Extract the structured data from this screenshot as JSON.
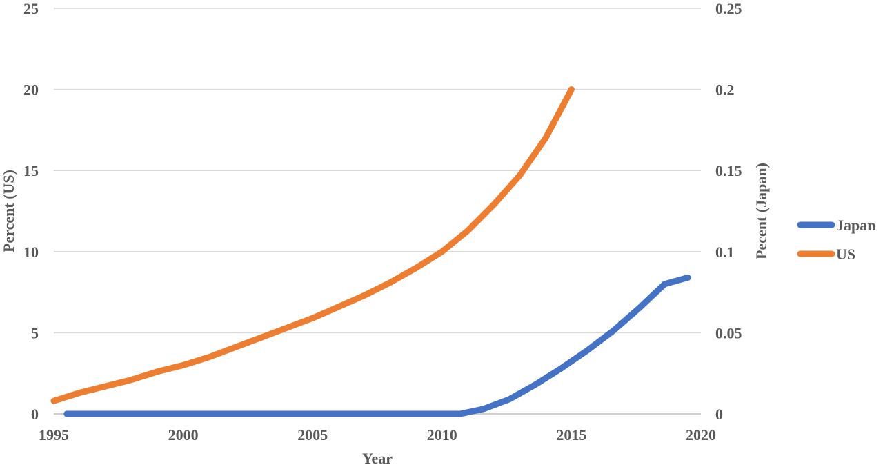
{
  "chart_data": {
    "type": "line",
    "xlabel": "Year",
    "ylabel_left": "Percent (US)",
    "ylabel_right": "Pecent (Japan)",
    "xlim": [
      1995,
      2020
    ],
    "x_ticks": [
      "1995",
      "2000",
      "2005",
      "2010",
      "2015",
      "2020"
    ],
    "ylim_left": [
      0,
      25
    ],
    "y_ticks_left": [
      "0",
      "5",
      "10",
      "15",
      "20",
      "25"
    ],
    "ylim_right": [
      0,
      0.25
    ],
    "y_ticks_right": [
      "0",
      "0.05",
      "0.1",
      "0.15",
      "0.2",
      "0.25"
    ],
    "grid": true,
    "legend_position": "right",
    "series": [
      {
        "name": "Japan",
        "axis": "right",
        "color": "#4472C4",
        "x": [
          1995.5,
          2000,
          2005,
          2010,
          2010.7,
          2011.6,
          2012.6,
          2013.6,
          2014.6,
          2015.6,
          2016.6,
          2017.6,
          2018.6,
          2019.5
        ],
        "y": [
          0,
          0,
          0,
          0,
          0,
          0.003,
          0.009,
          0.018,
          0.028,
          0.039,
          0.051,
          0.065,
          0.08,
          0.084
        ]
      },
      {
        "name": "US",
        "axis": "left",
        "color": "#ED7D31",
        "x": [
          1995,
          1996,
          1997,
          1998,
          1999,
          2000,
          2001,
          2002,
          2003,
          2004,
          2005,
          2006,
          2007,
          2008,
          2009,
          2010,
          2011,
          2012,
          2013,
          2014,
          2015
        ],
        "y": [
          0.8,
          1.3,
          1.7,
          2.1,
          2.6,
          3.0,
          3.5,
          4.1,
          4.7,
          5.3,
          5.9,
          6.6,
          7.3,
          8.1,
          9.0,
          10.0,
          11.3,
          12.9,
          14.7,
          17.0,
          20.0
        ]
      }
    ]
  }
}
